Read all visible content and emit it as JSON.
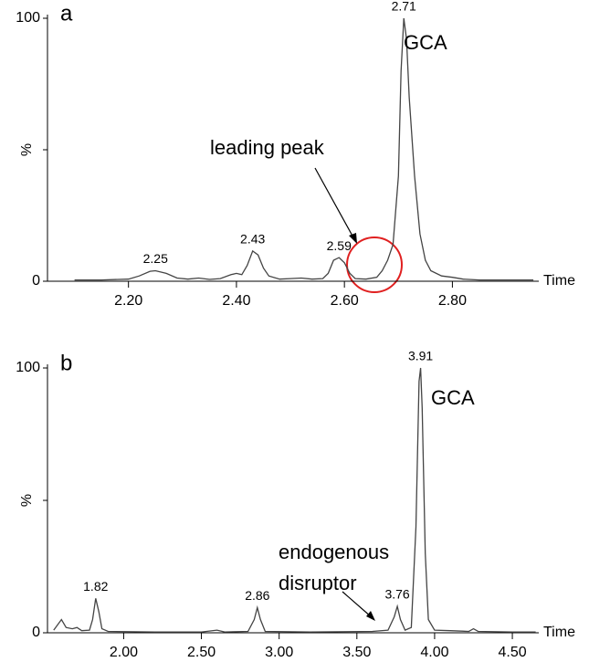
{
  "chart_data": [
    {
      "type": "line",
      "panel": "a",
      "xlabel": "Time",
      "ylabel": "%",
      "xlim": [
        2.05,
        2.96
      ],
      "ylim": [
        0,
        100
      ],
      "xticks": [
        {
          "value": 2.2,
          "label": "2.20"
        },
        {
          "value": 2.4,
          "label": "2.40"
        },
        {
          "value": 2.6,
          "label": "2.60"
        },
        {
          "value": 2.8,
          "label": "2.80"
        }
      ],
      "yticks": [
        0,
        100
      ],
      "series": [
        {
          "color": "#444444",
          "x": [
            2.1,
            2.15,
            2.2,
            2.22,
            2.24,
            2.25,
            2.27,
            2.29,
            2.31,
            2.33,
            2.35,
            2.37,
            2.39,
            2.4,
            2.41,
            2.42,
            2.43,
            2.44,
            2.45,
            2.46,
            2.48,
            2.5,
            2.52,
            2.54,
            2.56,
            2.57,
            2.58,
            2.59,
            2.6,
            2.61,
            2.62,
            2.64,
            2.66,
            2.67,
            2.68,
            2.69,
            2.7,
            2.705,
            2.71,
            2.715,
            2.72,
            2.73,
            2.74,
            2.75,
            2.76,
            2.78,
            2.8,
            2.82,
            2.85,
            2.9,
            2.95
          ],
          "values": [
            0.5,
            0.5,
            0.8,
            2,
            3.8,
            4,
            3,
            1.2,
            0.8,
            1.2,
            0.7,
            1,
            2.5,
            3,
            2.5,
            6,
            11.5,
            10,
            5,
            2,
            0.8,
            1,
            1.2,
            0.8,
            1,
            3,
            8,
            9,
            7,
            3,
            1,
            0.8,
            1.5,
            4,
            8,
            14,
            40,
            80,
            100,
            92,
            70,
            40,
            18,
            8,
            4,
            2,
            1.5,
            0.8,
            0.5,
            0.5,
            0.5
          ]
        }
      ],
      "peak_labels": [
        2.25,
        2.43,
        2.59,
        2.71
      ],
      "annotations": [
        "GCA",
        "leading peak"
      ]
    },
    {
      "type": "line",
      "panel": "b",
      "xlabel": "Time",
      "ylabel": "%",
      "xlim": [
        1.51,
        4.67
      ],
      "ylim": [
        0,
        100
      ],
      "xticks": [
        {
          "value": 2.0,
          "label": "2.00"
        },
        {
          "value": 2.5,
          "label": "2.50"
        },
        {
          "value": 3.0,
          "label": "3.00"
        },
        {
          "value": 3.5,
          "label": "3.50"
        },
        {
          "value": 4.0,
          "label": "4.00"
        },
        {
          "value": 4.5,
          "label": "4.50"
        }
      ],
      "yticks": [
        0,
        100
      ],
      "series": [
        {
          "color": "#444444",
          "x": [
            1.55,
            1.6,
            1.63,
            1.67,
            1.7,
            1.73,
            1.78,
            1.8,
            1.82,
            1.84,
            1.86,
            1.9,
            2.2,
            2.5,
            2.6,
            2.65,
            2.8,
            2.84,
            2.86,
            2.88,
            2.91,
            3.2,
            3.6,
            3.7,
            3.74,
            3.76,
            3.78,
            3.81,
            3.85,
            3.88,
            3.9,
            3.91,
            3.92,
            3.94,
            3.96,
            4.0,
            4.1,
            4.22,
            4.25,
            4.28,
            4.5,
            4.65
          ],
          "values": [
            1,
            5,
            2,
            1.5,
            2,
            0.8,
            1,
            5,
            13,
            8,
            1.5,
            0.5,
            0.3,
            0.3,
            1,
            0.3,
            0.5,
            5,
            9.5,
            5,
            0.5,
            0.3,
            0.5,
            1,
            6,
            10,
            5,
            1,
            2,
            40,
            95,
            100,
            85,
            30,
            5,
            1,
            0.8,
            0.5,
            1.5,
            0.5,
            0.3,
            0.3
          ]
        }
      ],
      "peak_labels": [
        1.82,
        2.86,
        3.76,
        3.91
      ],
      "annotations": [
        "GCA",
        "endogenous",
        "disruptor"
      ]
    }
  ]
}
